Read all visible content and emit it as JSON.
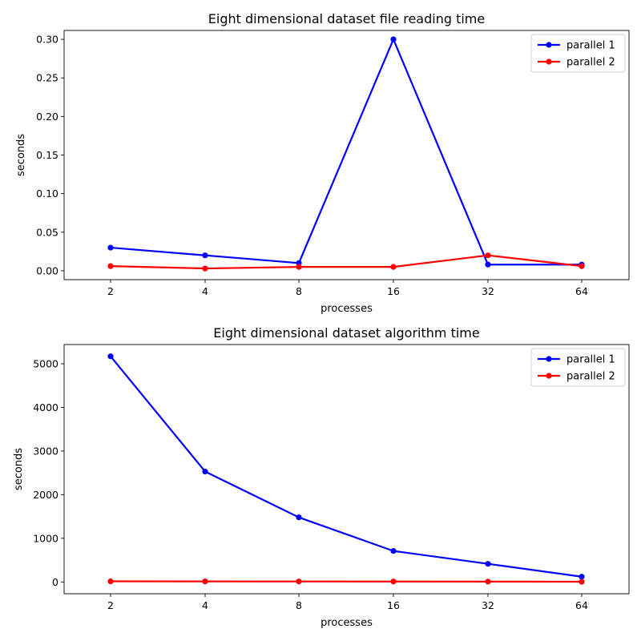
{
  "chart_data": [
    {
      "type": "line",
      "title": "Eight dimensional dataset file reading time",
      "xlabel": "processes",
      "ylabel": "seconds",
      "categories": [
        "2",
        "4",
        "8",
        "16",
        "32",
        "64"
      ],
      "yticks": [
        "0.00",
        "0.05",
        "0.10",
        "0.15",
        "0.20",
        "0.25",
        "0.30"
      ],
      "ylim": [
        -0.0115,
        0.3115
      ],
      "legend_position": "top-right",
      "grid": false,
      "series": [
        {
          "name": "parallel 1",
          "color": "#0000ff",
          "values": [
            0.03,
            0.02,
            0.01,
            0.3,
            0.008,
            0.008
          ]
        },
        {
          "name": "parallel 2",
          "color": "#ff0000",
          "values": [
            0.006,
            0.003,
            0.005,
            0.005,
            0.02,
            0.006
          ]
        }
      ]
    },
    {
      "type": "line",
      "title": "Eight dimensional dataset algorithm time",
      "xlabel": "processes",
      "ylabel": "seconds",
      "categories": [
        "2",
        "4",
        "8",
        "16",
        "32",
        "64"
      ],
      "yticks": [
        "0",
        "1000",
        "2000",
        "3000",
        "4000",
        "5000"
      ],
      "ylim": [
        -270,
        5440
      ],
      "legend_position": "top-right",
      "grid": false,
      "series": [
        {
          "name": "parallel 1",
          "color": "#0000ff",
          "values": [
            5170,
            2530,
            1480,
            710,
            415,
            120
          ]
        },
        {
          "name": "parallel 2",
          "color": "#ff0000",
          "values": [
            14,
            13,
            11,
            10,
            8,
            5
          ]
        }
      ]
    }
  ]
}
